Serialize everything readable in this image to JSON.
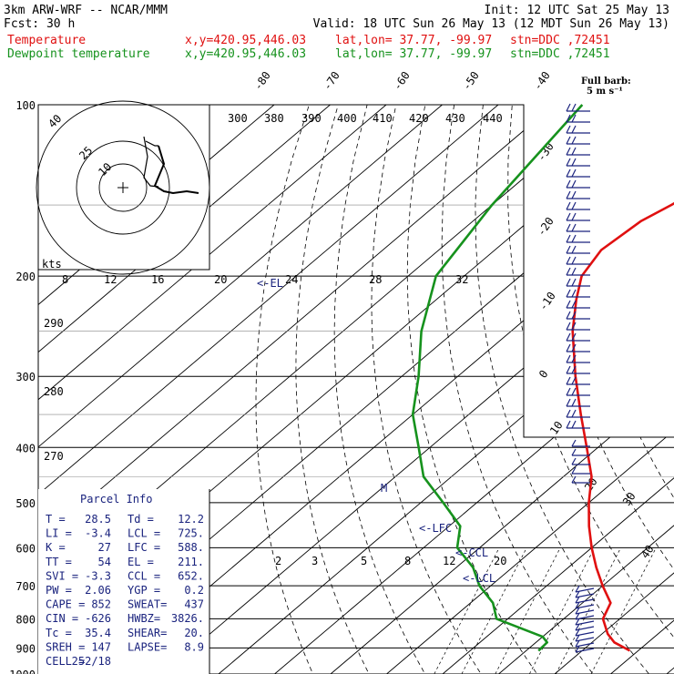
{
  "header": {
    "model": "3km ARW-WRF -- NCAR/MMM",
    "init": "Init: 12 UTC Sat 25 May 13",
    "fcst": "Fcst:    30 h",
    "valid": "Valid: 18 UTC Sun 26 May 13 (12 MDT Sun 26 May 13)",
    "temp_line": {
      "name": "Temperature",
      "xy": "x,y=420.95,446.03",
      "latlon": "lat,lon= 37.77, -99.97",
      "stn": "stn=DDC ,72451"
    },
    "dew_line": {
      "name": "Dewpoint temperature",
      "xy": "x,y=420.95,446.03",
      "latlon": "lat,lon= 37.77, -99.97",
      "stn": "stn=DDC ,72451"
    }
  },
  "colors": {
    "temperature": "#e01010",
    "dewpoint": "#16921d",
    "text": "#1a237e",
    "grid": "#000000"
  },
  "barb_legend": {
    "title": "Full barb:",
    "value": "5 m s⁻¹"
  },
  "markers": {
    "el": "<-EL",
    "lfc": "<-LFC",
    "ccl": "<-CCL",
    "lcl": "<-LCL",
    "m": "M"
  },
  "hodograph": {
    "unit_label": "kts",
    "ring_labels": [
      "10",
      "25",
      "40"
    ]
  },
  "parcel_info": {
    "title": "Parcel Info",
    "rows": [
      [
        "T   =",
        "28.5",
        "Td  =",
        "12.2"
      ],
      [
        "LI  =",
        "-3.4",
        "LCL =",
        "725."
      ],
      [
        "K   =",
        "27",
        "LFC =",
        "588."
      ],
      [
        "TT  =",
        "54",
        "EL  =",
        "211."
      ],
      [
        "SVI =",
        "-3.3",
        "CCL =",
        "652."
      ],
      [
        "PW  =",
        "2.06",
        "YGP =",
        "0.2"
      ],
      [
        "CAPE =",
        "852",
        "SWEAT=",
        "437"
      ],
      [
        "CIN  =",
        "-626",
        "HWBZ=",
        "3826."
      ],
      [
        "Tc   =",
        "35.4",
        "SHEAR=",
        "20."
      ],
      [
        "SREH =",
        "147",
        "LAPSE=",
        "8.9"
      ],
      [
        "CELL =",
        "252/18",
        "",
        ""
      ]
    ]
  },
  "chart_data": {
    "type": "line",
    "chart_kind": "Skew-T log-P sounding",
    "y_axis": {
      "label": "",
      "scale": "log",
      "range": [
        1000,
        100
      ],
      "ticks": [
        100,
        200,
        300,
        400,
        500,
        600,
        700,
        800,
        900,
        1000
      ]
    },
    "isotherm_labels": [
      "-80",
      "-70",
      "-60",
      "-50",
      "-40",
      "-30",
      "-20",
      "-10",
      "0",
      "10",
      "20",
      "30",
      "40"
    ],
    "theta_labels": [
      "270",
      "280",
      "290",
      "300",
      "380",
      "390",
      "400",
      "410",
      "420",
      "430",
      "440"
    ],
    "mixing_ratio_labels": [
      "2",
      "3",
      "5",
      "8",
      "12",
      "20"
    ],
    "hodo_speed_labels": [
      "8",
      "12",
      "16",
      "20",
      "24",
      "28",
      "32"
    ],
    "series": [
      {
        "name": "Temperature",
        "unit": "degC",
        "points": [
          [
            910,
            28.5
          ],
          [
            880,
            24
          ],
          [
            850,
            21
          ],
          [
            800,
            17
          ],
          [
            750,
            15
          ],
          [
            700,
            10
          ],
          [
            650,
            5
          ],
          [
            600,
            0
          ],
          [
            550,
            -5
          ],
          [
            500,
            -10
          ],
          [
            450,
            -15
          ],
          [
            400,
            -22
          ],
          [
            350,
            -30
          ],
          [
            300,
            -39
          ],
          [
            250,
            -49
          ],
          [
            220,
            -55
          ],
          [
            200,
            -59
          ],
          [
            180,
            -61
          ],
          [
            160,
            -60
          ],
          [
            150,
            -58
          ],
          [
            130,
            -54
          ],
          [
            115,
            -51
          ],
          [
            100,
            -49
          ]
        ]
      },
      {
        "name": "Dewpoint temperature",
        "unit": "degC",
        "points": [
          [
            910,
            12.2
          ],
          [
            880,
            12
          ],
          [
            860,
            10
          ],
          [
            800,
            -2
          ],
          [
            750,
            -6
          ],
          [
            700,
            -12
          ],
          [
            650,
            -17
          ],
          [
            600,
            -24
          ],
          [
            550,
            -28
          ],
          [
            500,
            -36
          ],
          [
            450,
            -45
          ],
          [
            400,
            -52
          ],
          [
            350,
            -60
          ],
          [
            300,
            -67
          ],
          [
            250,
            -76
          ],
          [
            200,
            -85
          ],
          [
            150,
            -90
          ],
          [
            100,
            -95
          ]
        ]
      }
    ]
  }
}
